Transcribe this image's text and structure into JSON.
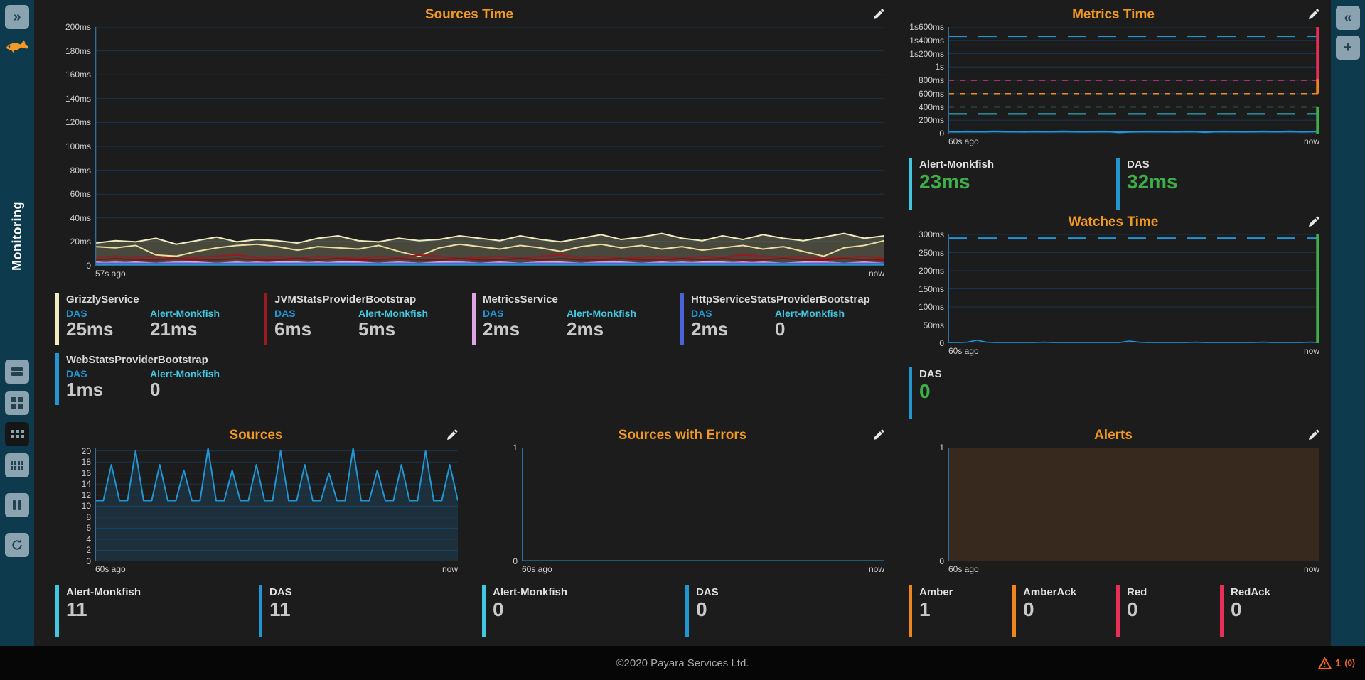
{
  "sidebar": {
    "expand_glyph": "»",
    "brand": "Monitoring",
    "layout_buttons": [
      "rows-layout",
      "grid-2x2",
      "grid-3x2",
      "grid-4x2",
      "pause",
      "refresh"
    ],
    "selected_button": "grid-3x2"
  },
  "topbar_right": {
    "collapse_glyph": "«",
    "add_glyph": "+"
  },
  "footer": {
    "copyright": "©2020 Payara Services Ltd.",
    "alerts_count": "1",
    "alerts_ack": "(0)"
  },
  "colors": {
    "sidebar_bg": "#0d3b4d",
    "main_bg": "#1c1c1d",
    "title_orange": "#f1991f",
    "grid": "#173450",
    "axis": "#2d6fa5",
    "das_blue": "#2196d3",
    "monkfish_cyan": "#41c7e0",
    "value_gray": "#c9c9c9",
    "value_green": "#3fae49",
    "amber_orange": "#f0851c",
    "alert_red": "#ea2e57",
    "warning_orange": "#f2671c"
  },
  "chart_data": [
    {
      "id": "sources_time",
      "type": "line",
      "title": "Sources Time",
      "ylim": [
        0,
        200
      ],
      "yticks": [
        {
          "label": "200ms",
          "v": 200
        },
        {
          "label": "180ms",
          "v": 180
        },
        {
          "label": "160ms",
          "v": 160
        },
        {
          "label": "140ms",
          "v": 140
        },
        {
          "label": "120ms",
          "v": 120
        },
        {
          "label": "100ms",
          "v": 100
        },
        {
          "label": "80ms",
          "v": 80
        },
        {
          "label": "60ms",
          "v": 60
        },
        {
          "label": "40ms",
          "v": 40
        },
        {
          "label": "20ms",
          "v": 20
        },
        {
          "label": "0",
          "v": 0
        }
      ],
      "x_start": "57s ago",
      "x_end": "now",
      "ref_lines": [
        {
          "v": 20,
          "color": "#2d6fa5",
          "width": 1
        }
      ],
      "series": [
        {
          "name": "GrizzlyService DAS",
          "color": "#f1ebc0",
          "width": 2,
          "fill": "rgba(238,230,173,0.22)",
          "values": [
            19,
            21,
            20,
            23,
            18,
            21,
            24,
            20,
            22,
            21,
            19,
            23,
            25,
            21,
            20,
            23,
            21,
            22,
            25,
            23,
            21,
            25,
            22,
            20,
            23,
            26,
            22,
            24,
            27,
            23,
            21,
            25,
            22,
            26,
            23,
            21,
            24,
            27,
            23,
            25
          ]
        },
        {
          "name": "GrizzlyService Alert-Monkfish",
          "color": "#eadfa0",
          "width": 2,
          "values": [
            16,
            15,
            17,
            9,
            8,
            12,
            15,
            17,
            18,
            16,
            13,
            16,
            15,
            14,
            17,
            12,
            8,
            15,
            18,
            16,
            14,
            17,
            15,
            12,
            16,
            18,
            15,
            17,
            14,
            16,
            13,
            15,
            17,
            14,
            16,
            12,
            8,
            15,
            17,
            21
          ]
        },
        {
          "name": "JVMStatsProviderBootstrap DAS",
          "color": "#9c1a1e",
          "width": 2,
          "values": [
            7,
            8,
            7,
            8,
            6,
            7,
            8,
            9,
            7,
            8,
            6,
            8,
            7,
            6,
            8,
            7,
            9,
            8,
            6,
            7,
            8,
            6,
            8,
            9,
            7,
            8,
            6,
            7,
            8,
            6,
            8,
            7,
            9,
            8,
            7,
            8,
            6,
            7,
            8,
            6
          ]
        },
        {
          "name": "JVMStatsProviderBootstrap Alert-Monkfish",
          "color": "#7d1215",
          "width": 2,
          "values": [
            5,
            6,
            5,
            5,
            6,
            5,
            5,
            6,
            5,
            5,
            6,
            5,
            6,
            5,
            5,
            6,
            5,
            5,
            6,
            5,
            5,
            6,
            5,
            6,
            5,
            5,
            6,
            5,
            5,
            6,
            5,
            6,
            5,
            5,
            6,
            5,
            5,
            6,
            5,
            5
          ]
        },
        {
          "name": "MetricsService DAS",
          "color": "#dfa4e3",
          "width": 2,
          "values": [
            3,
            2,
            3,
            2,
            3,
            3,
            2,
            3,
            2,
            3,
            3,
            2,
            3,
            3,
            2,
            3,
            2,
            3,
            3,
            2,
            3,
            2,
            3,
            3,
            2,
            3,
            3,
            2,
            3,
            2,
            3,
            3,
            2,
            3,
            2,
            3,
            3,
            2,
            3,
            2
          ]
        },
        {
          "name": "MetricsService Alert-Monkfish",
          "color": "#d191d6",
          "width": 2,
          "values": [
            2,
            3,
            2,
            2,
            3,
            2,
            2,
            2,
            3,
            2,
            2,
            3,
            2,
            2,
            2,
            3,
            2,
            2,
            3,
            2,
            2,
            2,
            3,
            2,
            2,
            3,
            2,
            2,
            2,
            3,
            2,
            2,
            3,
            2,
            2,
            2,
            3,
            2,
            2,
            2
          ]
        },
        {
          "name": "HttpServiceStatsProviderBootstrap DAS",
          "color": "#4a63d8",
          "width": 2,
          "values": [
            2,
            2,
            2,
            2,
            2,
            2,
            2,
            2,
            2,
            2,
            2,
            2,
            2,
            2,
            2,
            2,
            2,
            2,
            2,
            2,
            2,
            2,
            2,
            2,
            2,
            2,
            2,
            2,
            2,
            2,
            2,
            2,
            2,
            2,
            2,
            2,
            2,
            2,
            2,
            2
          ]
        },
        {
          "name": "WebStatsProviderBootstrap DAS",
          "color": "#2196d3",
          "width": 2,
          "values": [
            1,
            1,
            1,
            1,
            1,
            1,
            1,
            1,
            1,
            1,
            1,
            1,
            1,
            1,
            1,
            1,
            1,
            1,
            1,
            1,
            1,
            1,
            1,
            1,
            1,
            1,
            1,
            1,
            1,
            1,
            1,
            1,
            1,
            1,
            1,
            1,
            1,
            1,
            1,
            1
          ]
        }
      ],
      "legend_cols": 4,
      "legend": [
        {
          "bar": "#f1ebc0",
          "title": "GrizzlyService",
          "entries": [
            {
              "label": "DAS",
              "label_color": "#2196d3",
              "value": "25ms"
            },
            {
              "label": "Alert-Monkfish",
              "label_color": "#41c7e0",
              "value": "21ms"
            }
          ]
        },
        {
          "bar": "#9c1a1e",
          "title": "JVMStatsProviderBootstrap",
          "entries": [
            {
              "label": "DAS",
              "label_color": "#2196d3",
              "value": "6ms"
            },
            {
              "label": "Alert-Monkfish",
              "label_color": "#41c7e0",
              "value": "5ms"
            }
          ]
        },
        {
          "bar": "#dfa4e3",
          "title": "MetricsService",
          "entries": [
            {
              "label": "DAS",
              "label_color": "#2196d3",
              "value": "2ms"
            },
            {
              "label": "Alert-Monkfish",
              "label_color": "#41c7e0",
              "value": "2ms"
            }
          ]
        },
        {
          "bar": "#4a63d8",
          "title": "HttpServiceStatsProviderBootstrap",
          "entries": [
            {
              "label": "DAS",
              "label_color": "#2196d3",
              "value": "2ms"
            },
            {
              "label": "Alert-Monkfish",
              "label_color": "#41c7e0",
              "value": "0"
            }
          ]
        },
        {
          "bar": "#2196d3",
          "title": "WebStatsProviderBootstrap",
          "entries": [
            {
              "label": "DAS",
              "label_color": "#2196d3",
              "value": "1ms"
            },
            {
              "label": "Alert-Monkfish",
              "label_color": "#41c7e0",
              "value": "0"
            }
          ]
        }
      ]
    },
    {
      "id": "metrics_time",
      "type": "line",
      "title": "Metrics Time",
      "ylim": [
        0,
        1600
      ],
      "yticks": [
        {
          "label": "1s600ms",
          "v": 1600
        },
        {
          "label": "1s400ms",
          "v": 1400
        },
        {
          "label": "1s200ms",
          "v": 1200
        },
        {
          "label": "1s",
          "v": 1000
        },
        {
          "label": "800ms",
          "v": 800
        },
        {
          "label": "600ms",
          "v": 600
        },
        {
          "label": "400ms",
          "v": 400
        },
        {
          "label": "200ms",
          "v": 200
        },
        {
          "label": "0",
          "v": 0
        }
      ],
      "x_start": "60s ago",
      "x_end": "now",
      "ref_lines": [
        {
          "v": 1460,
          "color": "#2196d3",
          "dash": "26 16",
          "width": 2
        },
        {
          "v": 800,
          "color": "#d63384",
          "dash": "8 8",
          "width": 1.5
        },
        {
          "v": 600,
          "color": "#ef8c1a",
          "dash": "8 8",
          "width": 1.5
        },
        {
          "v": 400,
          "color": "#2e9e5b",
          "dash": "8 8",
          "width": 1.5
        },
        {
          "v": 295,
          "color": "#35c4dc",
          "dash": "26 16",
          "width": 2
        }
      ],
      "series": [
        {
          "name": "response time",
          "color": "#1f97dc",
          "width": 2.5,
          "values": [
            30,
            28,
            31,
            29,
            30,
            32,
            29,
            30,
            28,
            31,
            30,
            29,
            32,
            30,
            28,
            30,
            31,
            29,
            20,
            27,
            30,
            31,
            29,
            30,
            28,
            31,
            30,
            23,
            29,
            31,
            30,
            28,
            30,
            31,
            29,
            30,
            32,
            28,
            30,
            32
          ]
        }
      ],
      "right_bars": [
        {
          "from": 820,
          "to": 1600,
          "color": "#ea2e57"
        },
        {
          "from": 600,
          "to": 820,
          "color": "#f0851c"
        },
        {
          "from": 0,
          "to": 400,
          "color": "#3fae49"
        }
      ],
      "legend_cols": 2,
      "legend": [
        {
          "bar": "#41c7e0",
          "name": "Alert-Monkfish",
          "value": "23ms",
          "value_color": "#3fae49"
        },
        {
          "bar": "#2196d3",
          "name": "DAS",
          "value": "32ms",
          "value_color": "#3fae49"
        }
      ]
    },
    {
      "id": "watches_time",
      "type": "line",
      "title": "Watches Time",
      "ylim": [
        0,
        300
      ],
      "yticks": [
        {
          "label": "300ms",
          "v": 300
        },
        {
          "label": "250ms",
          "v": 250
        },
        {
          "label": "200ms",
          "v": 200
        },
        {
          "label": "150ms",
          "v": 150
        },
        {
          "label": "100ms",
          "v": 100
        },
        {
          "label": "50ms",
          "v": 50
        },
        {
          "label": "0",
          "v": 0
        }
      ],
      "x_start": "60s ago",
      "x_end": "now",
      "ref_lines": [
        {
          "v": 290,
          "color": "#2196d3",
          "dash": "26 16",
          "width": 2
        }
      ],
      "series": [
        {
          "name": "watch time",
          "color": "#1f97dc",
          "width": 1.5,
          "values": [
            2,
            2,
            3,
            8,
            3,
            2,
            2,
            2,
            2,
            2,
            3,
            2,
            2,
            2,
            2,
            2,
            2,
            2,
            2,
            6,
            3,
            2,
            2,
            2,
            2,
            2,
            3,
            2,
            2,
            2,
            2,
            2,
            2,
            3,
            2,
            2,
            2,
            2,
            3,
            2
          ]
        }
      ],
      "right_bars": [
        {
          "from": 0,
          "to": 300,
          "color": "#3fae49"
        }
      ],
      "legend_cols": 2,
      "legend": [
        {
          "bar": "#2196d3",
          "name": "DAS",
          "value": "0",
          "value_color": "#3fae49"
        }
      ]
    },
    {
      "id": "sources",
      "type": "line",
      "title": "Sources",
      "ylim": [
        0,
        20.6
      ],
      "yticks": [
        {
          "label": "20",
          "v": 20
        },
        {
          "label": "18",
          "v": 18
        },
        {
          "label": "16",
          "v": 16
        },
        {
          "label": "14",
          "v": 14
        },
        {
          "label": "12",
          "v": 12
        },
        {
          "label": "10",
          "v": 10
        },
        {
          "label": "8",
          "v": 8
        },
        {
          "label": "6",
          "v": 6
        },
        {
          "label": "4",
          "v": 4
        },
        {
          "label": "2",
          "v": 2
        },
        {
          "label": "0",
          "v": 0
        }
      ],
      "x_start": "60s ago",
      "x_end": "now",
      "series": [
        {
          "name": "sources count",
          "color": "#2196d3",
          "width": 2,
          "fill": "rgba(33,150,211,0.16)",
          "values": [
            11,
            11,
            17.5,
            11,
            11,
            20,
            11,
            11,
            17.5,
            11,
            11,
            16.5,
            11,
            11,
            20.5,
            11,
            11,
            16.5,
            11,
            11,
            17.5,
            11,
            11,
            20,
            11,
            11,
            17.5,
            11,
            11,
            16,
            11,
            11,
            20.5,
            11,
            11,
            16.5,
            11,
            11,
            17.5,
            11,
            11,
            20,
            11,
            11,
            17.5,
            11
          ]
        }
      ],
      "legend_cols": 2,
      "legend": [
        {
          "bar": "#41c7e0",
          "name": "Alert-Monkfish",
          "value": "11",
          "value_color": "#c9c9c9"
        },
        {
          "bar": "#2196d3",
          "name": "DAS",
          "value": "11",
          "value_color": "#c9c9c9"
        }
      ]
    },
    {
      "id": "sources_errors",
      "type": "line",
      "title": "Sources with Errors",
      "ylim": [
        0,
        1
      ],
      "yticks": [
        {
          "label": "1",
          "v": 1
        },
        {
          "label": "0",
          "v": 0
        }
      ],
      "x_start": "60s ago",
      "x_end": "now",
      "series": [
        {
          "name": "errors",
          "color": "#2196d3",
          "width": 3,
          "values": [
            0,
            0
          ]
        }
      ],
      "legend_cols": 2,
      "legend": [
        {
          "bar": "#41c7e0",
          "name": "Alert-Monkfish",
          "value": "0",
          "value_color": "#c9c9c9"
        },
        {
          "bar": "#2196d3",
          "name": "DAS",
          "value": "0",
          "value_color": "#c9c9c9"
        }
      ]
    },
    {
      "id": "alerts",
      "type": "line",
      "title": "Alerts",
      "ylim": [
        0,
        1
      ],
      "yticks": [
        {
          "label": "1",
          "v": 1
        },
        {
          "label": "0",
          "v": 0
        }
      ],
      "x_start": "60s ago",
      "x_end": "now",
      "series": [
        {
          "name": "amber alerts",
          "color": "#f0851c",
          "width": 2,
          "fill": "rgba(240,133,28,0.13)",
          "values": [
            1,
            1
          ]
        },
        {
          "name": "red alerts",
          "color": "#ea2e57",
          "width": 2,
          "values": [
            0,
            0
          ]
        }
      ],
      "legend_cols": 4,
      "legend": [
        {
          "bar": "#f0851c",
          "name": "Amber",
          "value": "1",
          "value_color": "#c9c9c9"
        },
        {
          "bar": "#f0851c",
          "name": "AmberAck",
          "value": "0",
          "value_color": "#c9c9c9"
        },
        {
          "bar": "#ea2e57",
          "name": "Red",
          "value": "0",
          "value_color": "#c9c9c9"
        },
        {
          "bar": "#ea2e57",
          "name": "RedAck",
          "value": "0",
          "value_color": "#c9c9c9"
        }
      ]
    }
  ]
}
